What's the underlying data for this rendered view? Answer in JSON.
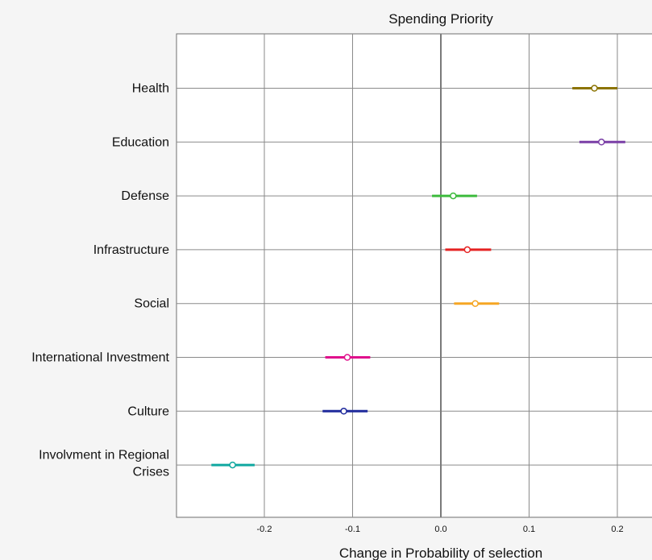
{
  "chart_data": {
    "type": "scatter",
    "title": "Spending Priority",
    "xlabel": "Change in Probability of selection",
    "ylabel": "",
    "xlim": [
      -0.3,
      0.24
    ],
    "xticks": [
      -0.2,
      -0.1,
      0.0,
      0.1,
      0.2
    ],
    "xtick_labels": [
      "-0.2",
      "-0.1",
      "0.0",
      "0.1",
      "0.2"
    ],
    "grid": true,
    "reference_line": 0.0,
    "categories": [
      {
        "label": "Health",
        "lines": [
          "Health"
        ],
        "estimate": 0.174,
        "low": 0.149,
        "high": 0.2,
        "color": "#8b7300"
      },
      {
        "label": "Education",
        "lines": [
          "Education"
        ],
        "estimate": 0.182,
        "low": 0.157,
        "high": 0.209,
        "color": "#7a3fa6"
      },
      {
        "label": "Defense",
        "lines": [
          "Defense"
        ],
        "estimate": 0.014,
        "low": -0.01,
        "high": 0.041,
        "color": "#3dbb3d"
      },
      {
        "label": "Infrastructure",
        "lines": [
          "Infrastructure"
        ],
        "estimate": 0.03,
        "low": 0.005,
        "high": 0.057,
        "color": "#e52222"
      },
      {
        "label": "Social",
        "lines": [
          "Social"
        ],
        "estimate": 0.039,
        "low": 0.015,
        "high": 0.066,
        "color": "#f5a623"
      },
      {
        "label": "International Investment",
        "lines": [
          "International Investment"
        ],
        "estimate": -0.106,
        "low": -0.131,
        "high": -0.08,
        "color": "#e0108c"
      },
      {
        "label": "Culture",
        "lines": [
          "Culture"
        ],
        "estimate": -0.11,
        "low": -0.134,
        "high": -0.083,
        "color": "#1f2a9c"
      },
      {
        "label": "Involvment in Regional Crises",
        "lines": [
          "Involvment in Regional",
          "Crises"
        ],
        "estimate": -0.236,
        "low": -0.26,
        "high": -0.211,
        "color": "#10a8a0"
      }
    ]
  }
}
